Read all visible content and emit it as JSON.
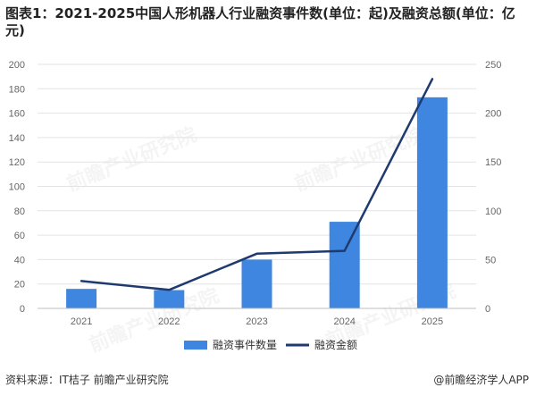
{
  "title": "图表1：2021-2025中国人形机器人行业融资事件数(单位：起)及融资总额(单位：亿元)",
  "source": "资料来源：IT桔子 前瞻产业研究院",
  "credit": "@前瞻经济学人APP",
  "watermark": "前瞻产业研究院",
  "colors": {
    "bar": "#3f86e0",
    "line": "#1f3a6e",
    "grid": "#e3e3e3"
  },
  "chart_data": {
    "type": "bar",
    "categories": [
      "2021",
      "2022",
      "2023",
      "2024",
      "2025"
    ],
    "series": [
      {
        "name": "融资事件数量",
        "type": "bar",
        "axis": "left",
        "values": [
          16,
          15,
          40,
          71,
          173
        ]
      },
      {
        "name": "融资金额",
        "type": "line",
        "axis": "right",
        "values": [
          28,
          19,
          56,
          59,
          235
        ]
      }
    ],
    "y_left": {
      "min": 0,
      "max": 200,
      "ticks": [
        0,
        20,
        40,
        60,
        80,
        100,
        120,
        140,
        160,
        180,
        200
      ]
    },
    "y_right": {
      "min": 0,
      "max": 250,
      "ticks": [
        0,
        50,
        100,
        150,
        200,
        250
      ]
    },
    "grid": true,
    "legend_position": "bottom"
  }
}
